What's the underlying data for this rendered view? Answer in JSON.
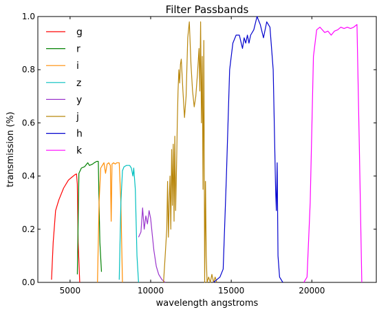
{
  "chart_data": {
    "type": "line",
    "title": "Filter Passbands",
    "xlabel": "wavelength angstroms",
    "ylabel": "transmission (%)",
    "xlim": [
      3000,
      24000
    ],
    "ylim": [
      0.0,
      1.0
    ],
    "xticks": [
      5000,
      10000,
      15000,
      20000
    ],
    "xtick_labels": [
      "5000",
      "10000",
      "15000",
      "20000"
    ],
    "yticks": [
      0.0,
      0.2,
      0.4,
      0.6,
      0.8,
      1.0
    ],
    "ytick_labels": [
      "0.0",
      "0.2",
      "0.4",
      "0.6",
      "0.8",
      "1.0"
    ],
    "grid": false,
    "legend": "top-left",
    "series": [
      {
        "name": "g",
        "color": "#ff0000",
        "x": [
          3850,
          3950,
          4100,
          4300,
          4600,
          4900,
          5100,
          5300,
          5400,
          5450,
          5500,
          5600
        ],
        "y": [
          0.01,
          0.15,
          0.27,
          0.31,
          0.355,
          0.385,
          0.395,
          0.405,
          0.408,
          0.37,
          0.15,
          0.0
        ]
      },
      {
        "name": "r",
        "color": "#008000",
        "x": [
          5450,
          5550,
          5700,
          5900,
          6100,
          6200,
          6400,
          6500,
          6650,
          6750,
          6800,
          6850,
          6950
        ],
        "y": [
          0.03,
          0.41,
          0.43,
          0.435,
          0.45,
          0.44,
          0.445,
          0.45,
          0.455,
          0.455,
          0.3,
          0.15,
          0.04
        ]
      },
      {
        "name": "i",
        "color": "#ff8c00",
        "x": [
          6700,
          6800,
          6900,
          7000,
          7100,
          7200,
          7300,
          7400,
          7500,
          7550,
          7600,
          7700,
          7800,
          7900,
          8050,
          8150,
          8250
        ],
        "y": [
          0.0,
          0.3,
          0.43,
          0.44,
          0.45,
          0.41,
          0.445,
          0.45,
          0.44,
          0.23,
          0.445,
          0.45,
          0.445,
          0.45,
          0.45,
          0.3,
          0.0
        ]
      },
      {
        "name": "z",
        "color": "#00bfbf",
        "x": [
          8050,
          8150,
          8250,
          8350,
          8500,
          8700,
          8800,
          8900,
          8950,
          9050,
          9150,
          9250
        ],
        "y": [
          0.01,
          0.3,
          0.42,
          0.435,
          0.44,
          0.44,
          0.43,
          0.4,
          0.43,
          0.35,
          0.1,
          0.0
        ]
      },
      {
        "name": "y",
        "color": "#9933cc",
        "x": [
          9250,
          9400,
          9500,
          9600,
          9700,
          9800,
          9900,
          10000,
          10100,
          10200,
          10350,
          10500,
          10700,
          10900
        ],
        "y": [
          0.17,
          0.19,
          0.28,
          0.2,
          0.25,
          0.22,
          0.27,
          0.24,
          0.18,
          0.12,
          0.06,
          0.03,
          0.01,
          0.0
        ]
      },
      {
        "name": "j",
        "color": "#b8860b",
        "x": [
          10800,
          10900,
          11000,
          11050,
          11100,
          11150,
          11200,
          11250,
          11300,
          11350,
          11400,
          11450,
          11500,
          11550,
          11600,
          11650,
          11700,
          11750,
          11800,
          11850,
          11900,
          12000,
          12100,
          12200,
          12300,
          12400,
          12500,
          12600,
          12700,
          12800,
          12900,
          13000,
          13050,
          13100,
          13150,
          13200,
          13250,
          13300,
          13350,
          13400,
          13450,
          13500,
          13600,
          13700,
          13800,
          13900,
          14000,
          14100
        ],
        "y": [
          0.0,
          0.1,
          0.2,
          0.38,
          0.17,
          0.3,
          0.4,
          0.2,
          0.5,
          0.29,
          0.52,
          0.23,
          0.55,
          0.27,
          0.42,
          0.6,
          0.72,
          0.8,
          0.75,
          0.82,
          0.84,
          0.72,
          0.62,
          0.7,
          0.92,
          0.98,
          0.82,
          0.72,
          0.66,
          0.7,
          0.78,
          0.88,
          0.72,
          0.98,
          0.6,
          0.85,
          0.35,
          0.91,
          0.0,
          0.38,
          0.1,
          0.0,
          0.02,
          0.0,
          0.03,
          0.0,
          0.02,
          0.0
        ]
      },
      {
        "name": "h",
        "color": "#0000cd",
        "x": [
          13900,
          14100,
          14300,
          14500,
          14700,
          14900,
          15100,
          15300,
          15500,
          15700,
          15800,
          15900,
          16000,
          16100,
          16200,
          16400,
          16600,
          16800,
          17000,
          17200,
          17400,
          17600,
          17750,
          17800,
          17850,
          17900,
          18000,
          18200
        ],
        "y": [
          0.0,
          0.01,
          0.02,
          0.05,
          0.4,
          0.8,
          0.9,
          0.93,
          0.93,
          0.88,
          0.92,
          0.9,
          0.93,
          0.9,
          0.93,
          0.95,
          1.0,
          0.97,
          0.92,
          0.98,
          0.96,
          0.8,
          0.35,
          0.27,
          0.45,
          0.1,
          0.02,
          0.0
        ]
      },
      {
        "name": "k",
        "color": "#ff00ff",
        "x": [
          19500,
          19700,
          19900,
          20100,
          20300,
          20500,
          20800,
          21000,
          21200,
          21400,
          21600,
          21800,
          22000,
          22200,
          22400,
          22600,
          22800,
          22950,
          23100
        ],
        "y": [
          0.0,
          0.02,
          0.3,
          0.85,
          0.95,
          0.96,
          0.94,
          0.945,
          0.93,
          0.945,
          0.95,
          0.96,
          0.955,
          0.96,
          0.955,
          0.96,
          0.97,
          0.5,
          0.0
        ]
      }
    ]
  }
}
